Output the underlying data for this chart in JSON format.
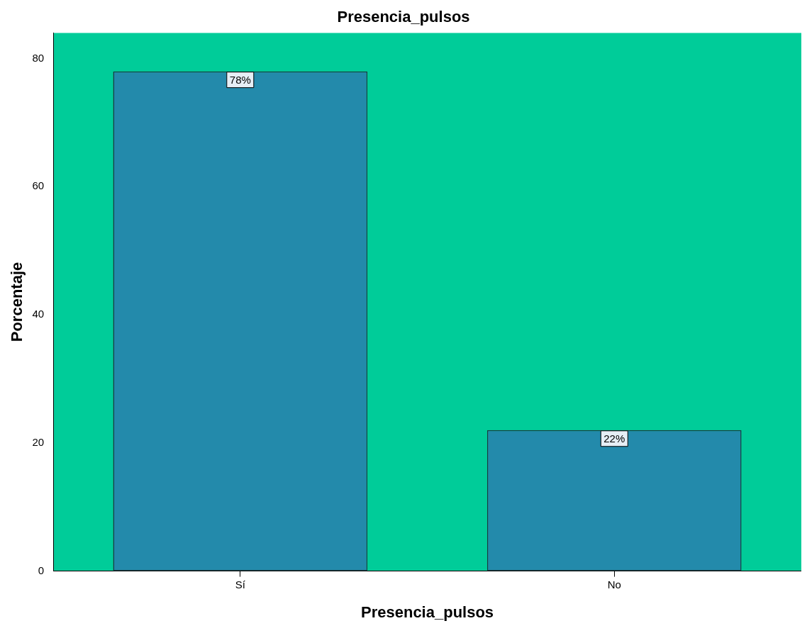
{
  "chart_data": {
    "type": "bar",
    "title": "Presencia_pulsos",
    "xlabel": "Presencia_pulsos",
    "ylabel": "Porcentaje",
    "categories": [
      "Sí",
      "No"
    ],
    "series": [
      {
        "color": "#238aab",
        "values": [
          78,
          22
        ],
        "value_labels": [
          "78%",
          "22%"
        ]
      }
    ],
    "ylim": [
      0,
      84
    ],
    "yticks": [
      0,
      20,
      40,
      60,
      80
    ],
    "grid": false,
    "legend": false
  }
}
